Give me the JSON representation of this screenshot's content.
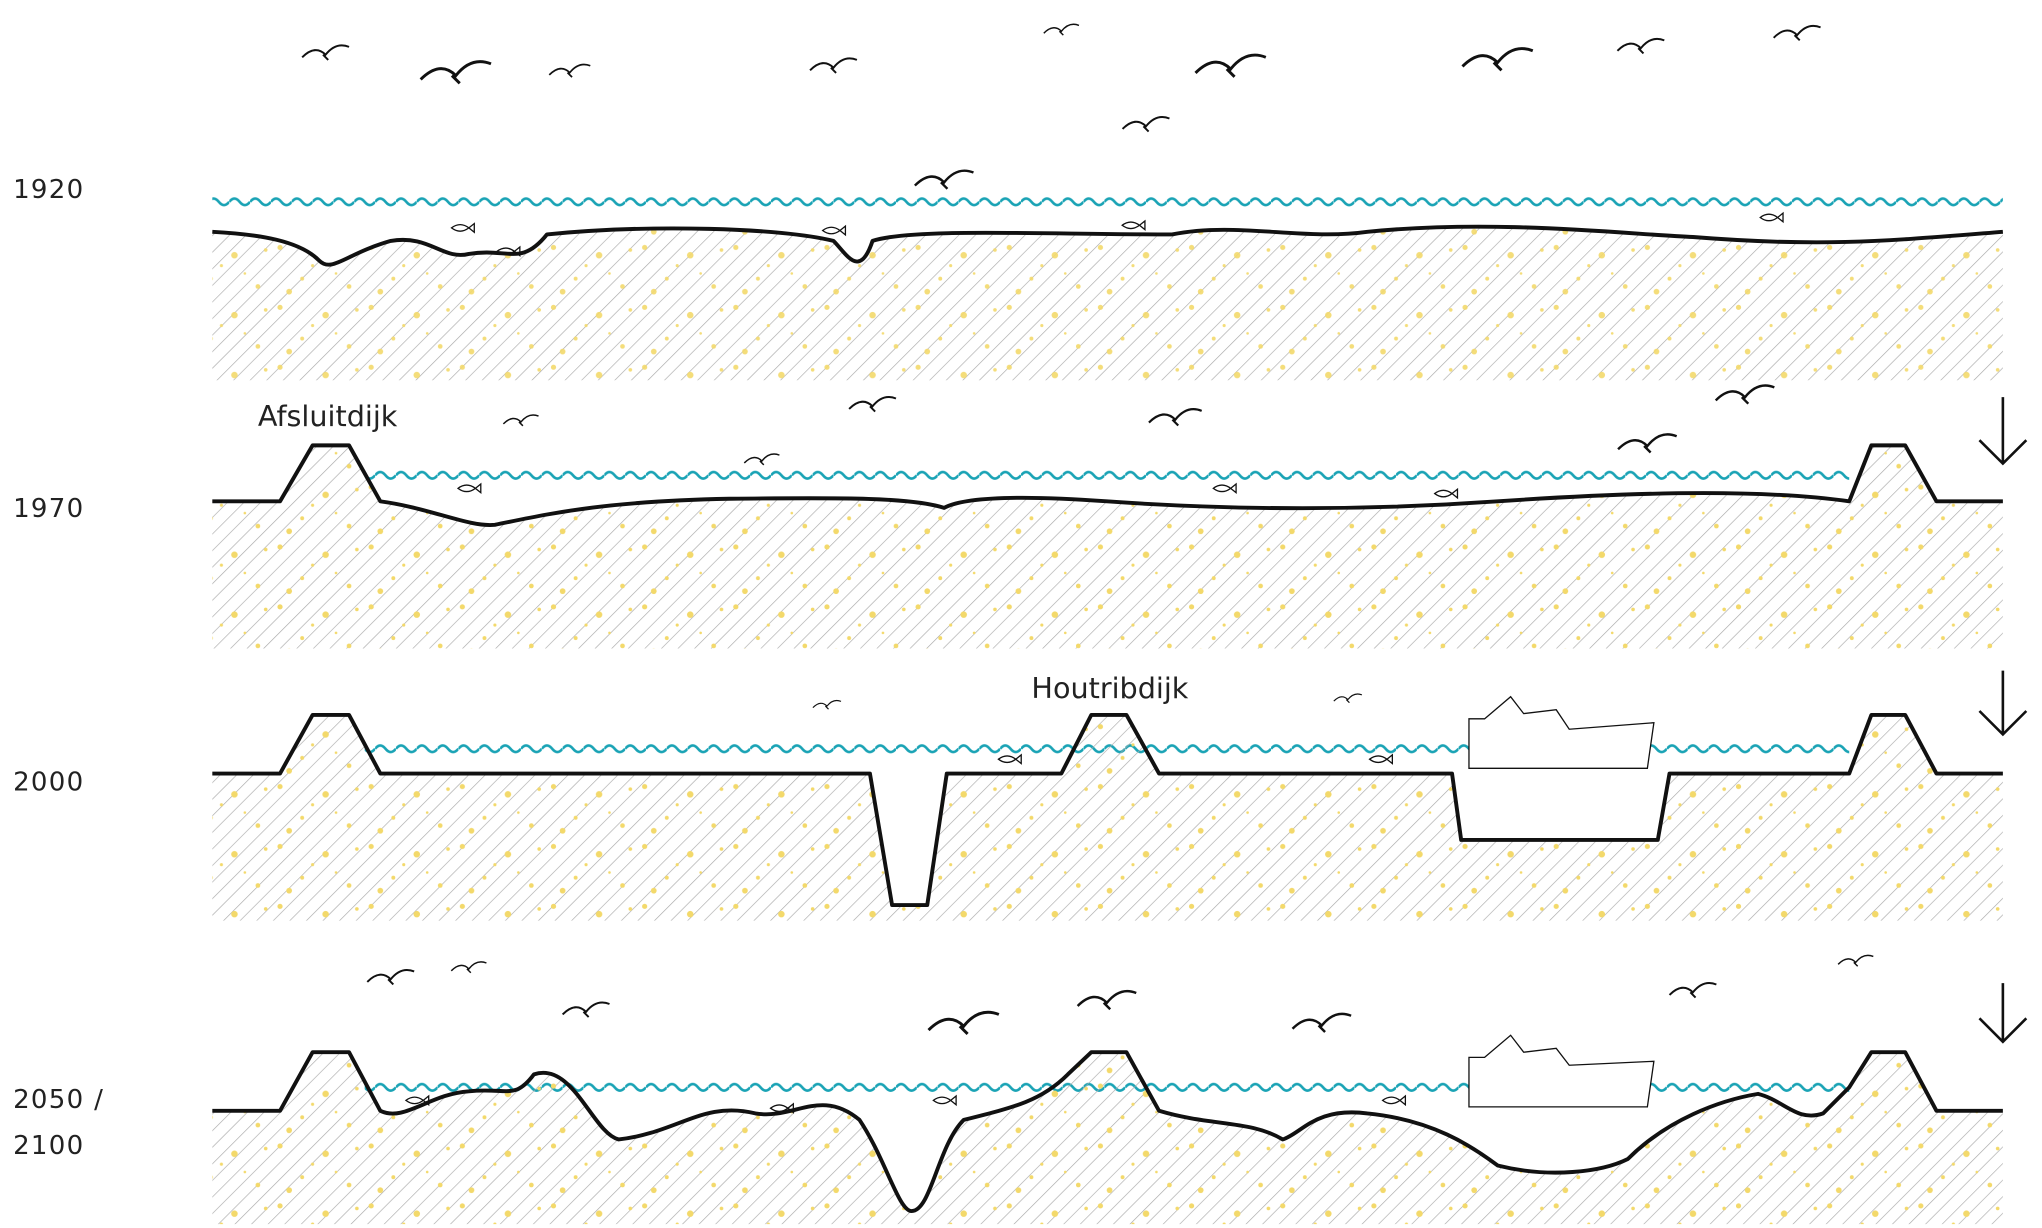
{
  "panels": [
    {
      "year": [
        "1920"
      ]
    },
    {
      "year": [
        "1970"
      ],
      "label": "Afsluitdijk"
    },
    {
      "year": [
        "2000"
      ],
      "label": "Houtribdijk"
    },
    {
      "year": [
        "2050 /",
        "2100"
      ]
    }
  ]
}
